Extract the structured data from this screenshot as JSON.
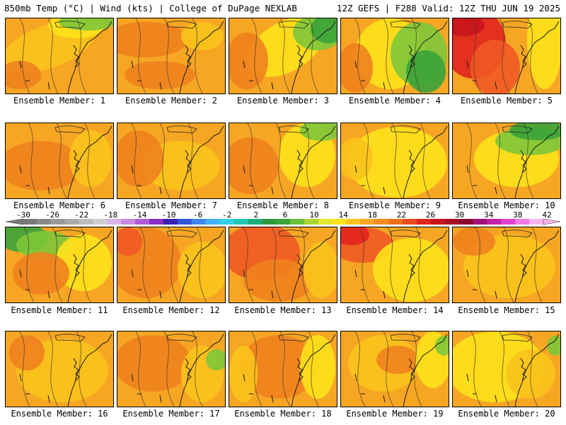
{
  "header": {
    "left": "850mb Temp (°C) | Wind (kts) | College of DuPage NEXLAB",
    "right": "12Z GEFS | F288 Valid: 12Z THU JUN 19 2025"
  },
  "colors": {
    "orange": "#f6a623",
    "dark_orange": "#f0821e",
    "yellow_orange": "#fbc31c",
    "yellow": "#fde21b",
    "yellow_green": "#c5dc2a",
    "light_green": "#7ec63a",
    "green": "#3aa33a",
    "dark_green": "#1f8a2e",
    "red_orange": "#f05a23",
    "red": "#e2231e",
    "dark_red": "#c8141c"
  },
  "panels": [
    {
      "label": "Ensemble Member: 1"
    },
    {
      "label": "Ensemble Member: 2"
    },
    {
      "label": "Ensemble Member: 3"
    },
    {
      "label": "Ensemble Member: 4"
    },
    {
      "label": "Ensemble Member: 5"
    },
    {
      "label": "Ensemble Member: 6"
    },
    {
      "label": "Ensemble Member: 7"
    },
    {
      "label": "Ensemble Member: 8"
    },
    {
      "label": "Ensemble Member: 9"
    },
    {
      "label": "Ensemble Member: 10"
    },
    {
      "label": "Ensemble Member: 11"
    },
    {
      "label": "Ensemble Member: 12"
    },
    {
      "label": "Ensemble Member: 13"
    },
    {
      "label": "Ensemble Member: 14"
    },
    {
      "label": "Ensemble Member: 15"
    },
    {
      "label": "Ensemble Member: 16"
    },
    {
      "label": "Ensemble Member: 17"
    },
    {
      "label": "Ensemble Member: 18"
    },
    {
      "label": "Ensemble Member: 19"
    },
    {
      "label": "Ensemble Member: 20"
    }
  ],
  "colorbar": {
    "tick_labels": [
      "-30",
      "-26",
      "-22",
      "-18",
      "-14",
      "-10",
      "-6",
      "-2",
      "2",
      "6",
      "10",
      "14",
      "18",
      "22",
      "26",
      "30",
      "34",
      "38",
      "42"
    ],
    "colors": [
      "#7a7a7a",
      "#8a8a8a",
      "#9a9a9a",
      "#aaaaaa",
      "#bcbcbc",
      "#cfcfcf",
      "#d9b3e6",
      "#c98be0",
      "#b05cd6",
      "#8a2ec4",
      "#3b1fb3",
      "#2f54d9",
      "#3c84ee",
      "#40b0f5",
      "#31d2e8",
      "#22c9b4",
      "#1fae7a",
      "#2e9a3a",
      "#3aa33a",
      "#6cc13a",
      "#a9d631",
      "#dfe82a",
      "#fde21b",
      "#fbc31c",
      "#f6a623",
      "#f38a1f",
      "#f0701e",
      "#ec4b1f",
      "#e2231e",
      "#c8141c",
      "#a80f24",
      "#8c0a30",
      "#a3127a",
      "#c520a8",
      "#e043cf",
      "#f07ae0",
      "#f9b4ef"
    ]
  }
}
